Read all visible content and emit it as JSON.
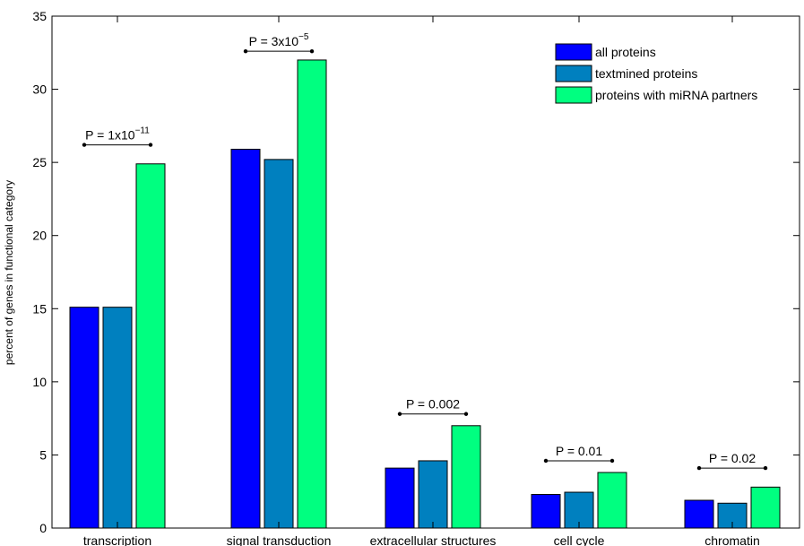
{
  "chart_data": {
    "type": "bar",
    "ylabel": "percent of genes in functional category",
    "ylim": [
      0,
      35
    ],
    "yticks": [
      0,
      5,
      10,
      15,
      20,
      25,
      30,
      35
    ],
    "categories": [
      "transcription",
      "signal transduction",
      "extracellular structures",
      "cell cycle",
      "chromatin"
    ],
    "series": [
      {
        "name": "all proteins",
        "color": "#0000ff",
        "values": [
          15.1,
          25.9,
          4.1,
          2.3,
          1.9
        ]
      },
      {
        "name": "textmined proteins",
        "color": "#0080bf",
        "values": [
          15.1,
          25.2,
          4.6,
          2.45,
          1.7
        ]
      },
      {
        "name": "proteins with miRNA partners",
        "color": "#00ff80",
        "values": [
          24.9,
          32.0,
          7.0,
          3.8,
          2.8
        ]
      }
    ],
    "annotations": [
      {
        "category": "transcription",
        "base": "P = 1x10",
        "exp": "−11",
        "y": 26.2
      },
      {
        "category": "signal transduction",
        "base": "P = 3x10",
        "exp": "−5",
        "y": 32.6
      },
      {
        "category": "extracellular structures",
        "base": "P = 0.002",
        "exp": "",
        "y": 7.8
      },
      {
        "category": "cell cycle",
        "base": "P = 0.01",
        "exp": "",
        "y": 4.6
      },
      {
        "category": "chromatin",
        "base": "P = 0.02",
        "exp": "",
        "y": 4.1
      }
    ],
    "legend_position": "top-right",
    "grid": false
  }
}
